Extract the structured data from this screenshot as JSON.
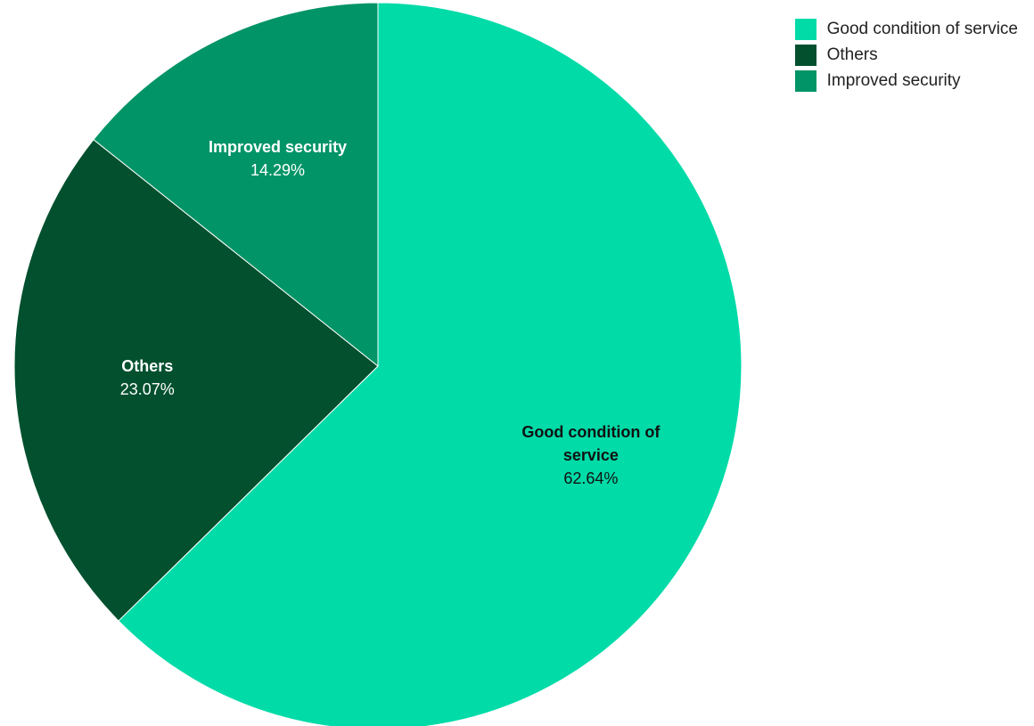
{
  "chart_data": {
    "type": "pie",
    "categories": [
      "Good condition of service",
      "Others",
      "Improved security"
    ],
    "values": [
      62.64,
      23.07,
      14.29
    ],
    "value_labels": [
      "62.64%",
      "23.07%",
      "14.29%"
    ],
    "colors": [
      "#00dba8",
      "#02502e",
      "#009466"
    ],
    "legend": "top-right"
  }
}
